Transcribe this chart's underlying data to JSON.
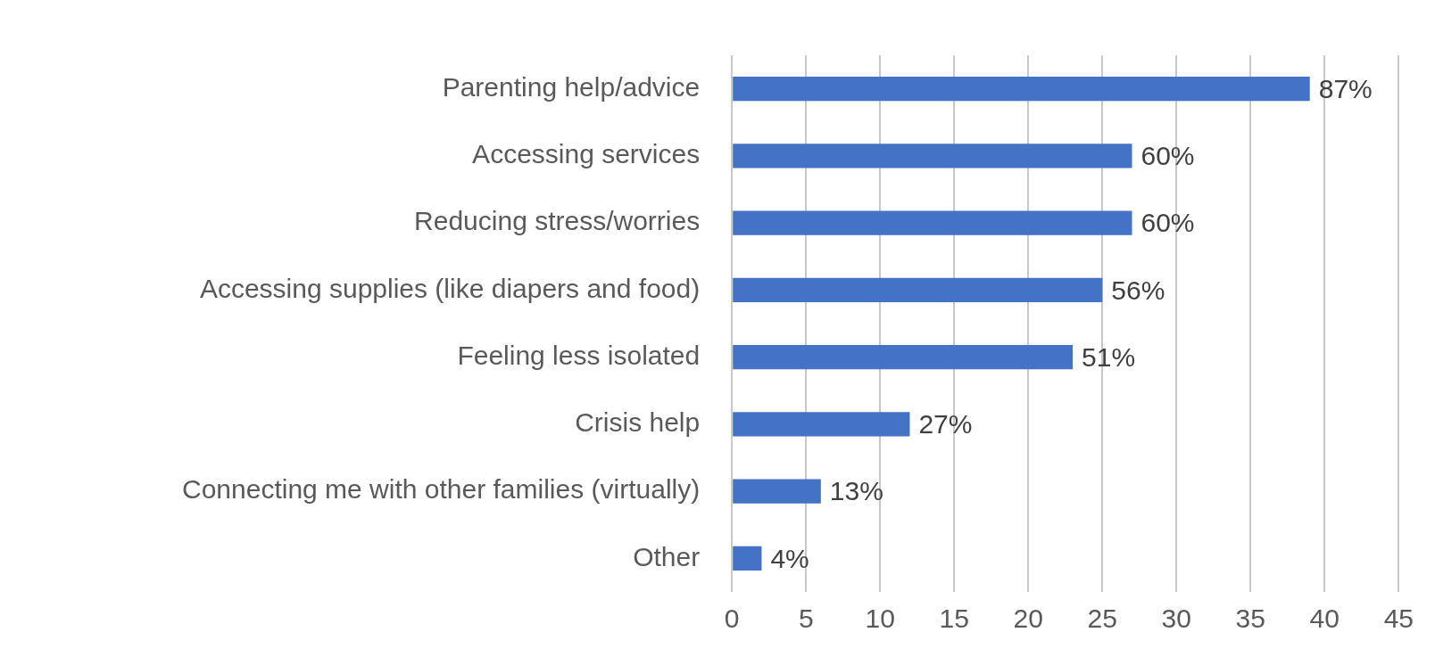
{
  "chart_data": {
    "type": "bar",
    "orientation": "horizontal",
    "categories": [
      "Parenting help/advice",
      "Accessing services",
      "Reducing stress/worries",
      "Accessing supplies (like diapers and food)",
      "Feeling less isolated",
      "Crisis help",
      "Connecting me with other families (virtually)",
      "Other"
    ],
    "values": [
      39,
      27,
      27,
      25,
      23,
      12,
      6,
      2
    ],
    "annotations": [
      {
        "text": "87%",
        "x": 39,
        "y": "Parenting help/advice"
      },
      {
        "text": "60%",
        "x": 27,
        "y": "Accessing services"
      },
      {
        "text": "60%",
        "x": 27,
        "y": "Reducing stress/worries"
      },
      {
        "text": "56%",
        "x": 25,
        "y": "Accessing supplies (like diapers and food)"
      },
      {
        "text": "51%",
        "x": 23,
        "y": "Feeling less isolated"
      },
      {
        "text": "27%",
        "x": 12,
        "y": "Crisis help"
      },
      {
        "text": "13%",
        "x": 6,
        "y": "Connecting me with other families (virtually)"
      },
      {
        "text": "4%",
        "x": 2,
        "y": "Other"
      }
    ],
    "color": "#4472c4",
    "xlim": [
      0,
      45
    ],
    "xticks": [
      0,
      5,
      10,
      15,
      20,
      25,
      30,
      35,
      40,
      45
    ],
    "grid": "x",
    "legend": false
  }
}
